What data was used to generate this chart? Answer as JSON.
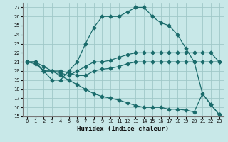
{
  "xlabel": "Humidex (Indice chaleur)",
  "bg_color": "#c8e8e8",
  "line_color": "#1a6b6b",
  "grid_color": "#a0c8c8",
  "xlim": [
    -0.5,
    23.5
  ],
  "ylim": [
    15,
    27.5
  ],
  "xticks": [
    0,
    1,
    2,
    3,
    4,
    5,
    6,
    7,
    8,
    9,
    10,
    11,
    12,
    13,
    14,
    15,
    16,
    17,
    18,
    19,
    20,
    21,
    22,
    23
  ],
  "yticks": [
    15,
    16,
    17,
    18,
    19,
    20,
    21,
    22,
    23,
    24,
    25,
    26,
    27
  ],
  "curve1_x": [
    0,
    1,
    2,
    3,
    4,
    5,
    6,
    7,
    8,
    9,
    10,
    11,
    12,
    13,
    14,
    15,
    16,
    17,
    18,
    19,
    20,
    21,
    22,
    23
  ],
  "curve1_y": [
    21,
    20.8,
    20,
    19,
    19,
    20,
    21,
    23,
    24.8,
    26,
    26,
    26,
    26.5,
    27,
    27,
    26,
    25.3,
    25,
    24,
    22.5,
    21,
    17.5,
    16.3,
    15.2
  ],
  "curve2_x": [
    0,
    1,
    2,
    3,
    4,
    5,
    6,
    7,
    8,
    9,
    10,
    11,
    12,
    13,
    14,
    15,
    16,
    17,
    18,
    19,
    20,
    21,
    22,
    23
  ],
  "curve2_y": [
    21,
    21,
    20,
    20,
    19.8,
    19.5,
    20,
    20.5,
    21,
    21,
    21.2,
    21.5,
    21.8,
    22,
    22,
    22,
    22,
    22,
    22,
    22,
    22,
    22,
    22,
    21
  ],
  "curve3_x": [
    0,
    1,
    2,
    3,
    4,
    5,
    6,
    7,
    8,
    9,
    10,
    11,
    12,
    13,
    14,
    15,
    16,
    17,
    18,
    19,
    20,
    21,
    22,
    23
  ],
  "curve3_y": [
    21,
    21,
    20,
    20,
    20,
    19.8,
    19.5,
    19.5,
    20,
    20.2,
    20.3,
    20.5,
    20.8,
    21,
    21,
    21,
    21,
    21,
    21,
    21,
    21,
    21,
    21,
    21
  ],
  "curve4_x": [
    0,
    1,
    2,
    3,
    4,
    5,
    6,
    7,
    8,
    9,
    10,
    11,
    12,
    13,
    14,
    15,
    16,
    17,
    18,
    19,
    20,
    21,
    22,
    23
  ],
  "curve4_y": [
    21,
    21,
    20.5,
    20,
    19.5,
    19,
    18.5,
    18,
    17.5,
    17.2,
    17,
    16.8,
    16.5,
    16.2,
    16,
    16,
    16,
    15.8,
    15.8,
    15.7,
    15.5,
    17.5,
    16.3,
    15.2
  ]
}
